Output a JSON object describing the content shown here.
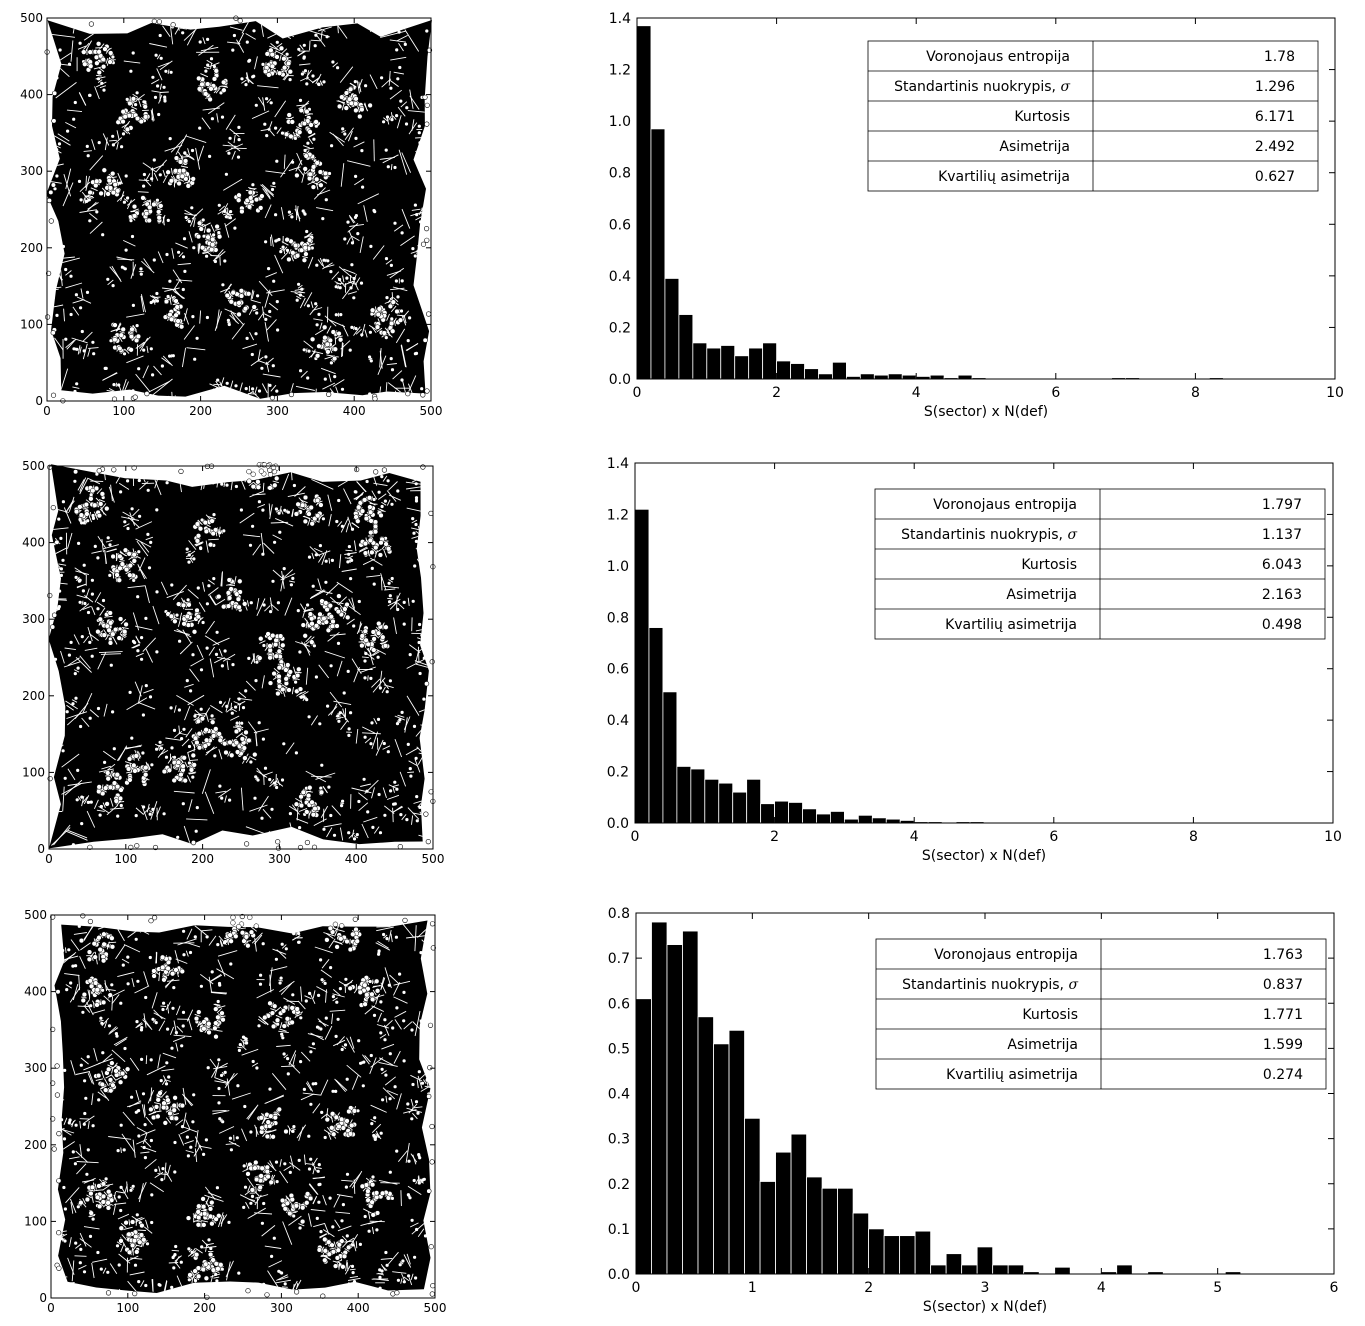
{
  "chart_data": [
    {
      "type": "scatter",
      "title": "",
      "xlabel": "",
      "ylabel": "",
      "xlim": [
        0,
        500
      ],
      "ylim": [
        0,
        500
      ],
      "x_ticks": [
        "0",
        "100",
        "200",
        "300",
        "400",
        "500"
      ],
      "y_ticks": [
        "0",
        "100",
        "200",
        "300",
        "400",
        "500"
      ],
      "marker_fill": "#000000",
      "point_color": "#ffffff",
      "clusters": [
        [
          65,
          450
        ],
        [
          110,
          375
        ],
        [
          215,
          410
        ],
        [
          300,
          440
        ],
        [
          330,
          360
        ],
        [
          400,
          390
        ],
        [
          75,
          280
        ],
        [
          130,
          245
        ],
        [
          175,
          300
        ],
        [
          260,
          260
        ],
        [
          345,
          300
        ],
        [
          330,
          200
        ],
        [
          210,
          215
        ],
        [
          100,
          85
        ],
        [
          170,
          115
        ],
        [
          250,
          125
        ],
        [
          365,
          75
        ],
        [
          440,
          110
        ]
      ]
    },
    {
      "type": "bar",
      "title": "",
      "xlabel": "S(sector) x N(def)",
      "ylabel": "",
      "xlim": [
        0,
        10
      ],
      "ylim": [
        0,
        1.4
      ],
      "x_ticks": [
        "0",
        "2",
        "4",
        "6",
        "8",
        "10"
      ],
      "y_ticks": [
        "0.0",
        "0.2",
        "0.4",
        "0.6",
        "0.8",
        "1.0",
        "1.2",
        "1.4"
      ],
      "bin_width": 0.2,
      "bar_color": "#000000",
      "values": [
        1.37,
        0.97,
        0.39,
        0.25,
        0.14,
        0.12,
        0.13,
        0.09,
        0.12,
        0.14,
        0.07,
        0.06,
        0.04,
        0.02,
        0.065,
        0.01,
        0.02,
        0.015,
        0.02,
        0.015,
        0.01,
        0.015,
        0.005,
        0.015,
        0.005,
        0,
        0,
        0,
        0,
        0,
        0,
        0,
        0,
        0,
        0.005,
        0.005,
        0,
        0,
        0,
        0,
        0,
        0.005
      ],
      "stats": [
        {
          "label": "Voronojaus entropija",
          "value": "1.78"
        },
        {
          "label": "Standartinis nuokrypis, ",
          "symbol": "σ",
          "value": "1.296"
        },
        {
          "label": "Kurtosis",
          "value": "6.171"
        },
        {
          "label": "Asimetrija",
          "value": "2.492"
        },
        {
          "label": "Kvartilių asimetrija",
          "value": "0.627"
        }
      ]
    },
    {
      "type": "scatter",
      "title": "",
      "xlabel": "",
      "ylabel": "",
      "xlim": [
        0,
        500
      ],
      "ylim": [
        0,
        500
      ],
      "x_ticks": [
        "0",
        "100",
        "200",
        "300",
        "400",
        "500"
      ],
      "y_ticks": [
        "0",
        "100",
        "200",
        "300",
        "400",
        "500"
      ],
      "marker_fill": "#000000",
      "point_color": "#ffffff",
      "clusters": [
        [
          55,
          450
        ],
        [
          100,
          370
        ],
        [
          205,
          415
        ],
        [
          280,
          490
        ],
        [
          340,
          440
        ],
        [
          420,
          440
        ],
        [
          80,
          290
        ],
        [
          175,
          300
        ],
        [
          240,
          330
        ],
        [
          290,
          260
        ],
        [
          350,
          290
        ],
        [
          370,
          310
        ],
        [
          310,
          220
        ],
        [
          205,
          150
        ],
        [
          250,
          135
        ],
        [
          170,
          110
        ],
        [
          80,
          80
        ],
        [
          110,
          100
        ],
        [
          340,
          60
        ],
        [
          425,
          400
        ],
        [
          425,
          275
        ]
      ]
    },
    {
      "type": "bar",
      "title": "",
      "xlabel": "S(sector) x N(def)",
      "ylabel": "",
      "xlim": [
        0,
        10
      ],
      "ylim": [
        0,
        1.4
      ],
      "x_ticks": [
        "0",
        "2",
        "4",
        "6",
        "8",
        "10"
      ],
      "y_ticks": [
        "0.0",
        "0.2",
        "0.4",
        "0.6",
        "0.8",
        "1.0",
        "1.2",
        "1.4"
      ],
      "bin_width": 0.2,
      "bar_color": "#000000",
      "values": [
        1.22,
        0.76,
        0.51,
        0.22,
        0.21,
        0.17,
        0.155,
        0.12,
        0.17,
        0.075,
        0.085,
        0.08,
        0.055,
        0.035,
        0.045,
        0.015,
        0.03,
        0.02,
        0.015,
        0.01,
        0.005,
        0.005,
        0,
        0.005,
        0.005,
        0,
        0,
        0,
        0,
        0
      ],
      "stats": [
        {
          "label": "Voronojaus entropija",
          "value": "1.797"
        },
        {
          "label": "Standartinis nuokrypis, ",
          "symbol": "σ",
          "value": "1.137"
        },
        {
          "label": "Kurtosis",
          "value": "6.043"
        },
        {
          "label": "Asimetrija",
          "value": "2.163"
        },
        {
          "label": "Kvartilių asimetrija",
          "value": "0.498"
        }
      ]
    },
    {
      "type": "scatter",
      "title": "",
      "xlabel": "",
      "ylabel": "",
      "xlim": [
        0,
        500
      ],
      "ylim": [
        0,
        500
      ],
      "x_ticks": [
        "0",
        "100",
        "200",
        "300",
        "400",
        "500"
      ],
      "y_ticks": [
        "0",
        "100",
        "200",
        "300",
        "400",
        "500"
      ],
      "marker_fill": "#000000",
      "point_color": "#ffffff",
      "clusters": [
        [
          60,
          460
        ],
        [
          150,
          430
        ],
        [
          250,
          480
        ],
        [
          380,
          470
        ],
        [
          60,
          400
        ],
        [
          210,
          360
        ],
        [
          300,
          370
        ],
        [
          410,
          400
        ],
        [
          80,
          290
        ],
        [
          150,
          250
        ],
        [
          290,
          230
        ],
        [
          380,
          230
        ],
        [
          60,
          130
        ],
        [
          110,
          80
        ],
        [
          200,
          110
        ],
        [
          270,
          160
        ],
        [
          320,
          120
        ],
        [
          420,
          130
        ],
        [
          200,
          40
        ],
        [
          370,
          60
        ]
      ]
    },
    {
      "type": "bar",
      "title": "",
      "xlabel": "S(sector) x N(def)",
      "ylabel": "",
      "xlim": [
        0,
        6
      ],
      "ylim": [
        0,
        0.8
      ],
      "x_ticks": [
        "0",
        "1",
        "2",
        "3",
        "4",
        "5",
        "6"
      ],
      "y_ticks": [
        "0.0",
        "0.1",
        "0.2",
        "0.3",
        "0.4",
        "0.5",
        "0.6",
        "0.7",
        "0.8"
      ],
      "bin_width": 0.1333,
      "bar_color": "#000000",
      "values": [
        0.61,
        0.78,
        0.73,
        0.76,
        0.57,
        0.51,
        0.54,
        0.345,
        0.205,
        0.27,
        0.31,
        0.215,
        0.19,
        0.19,
        0.135,
        0.1,
        0.085,
        0.085,
        0.095,
        0.02,
        0.045,
        0.02,
        0.06,
        0.02,
        0.02,
        0.005,
        0,
        0.015,
        0,
        0,
        0.005,
        0.02,
        0,
        0.005,
        0,
        0,
        0,
        0,
        0.005,
        0,
        0,
        0,
        0,
        0,
        0
      ],
      "stats": [
        {
          "label": "Voronojaus entropija",
          "value": "1.763"
        },
        {
          "label": "Standartinis nuokrypis, ",
          "symbol": "σ",
          "value": "0.837"
        },
        {
          "label": "Kurtosis",
          "value": "1.771"
        },
        {
          "label": "Asimetrija",
          "value": "1.599"
        },
        {
          "label": "Kvartilių asimetrija",
          "value": "0.274"
        }
      ]
    }
  ]
}
